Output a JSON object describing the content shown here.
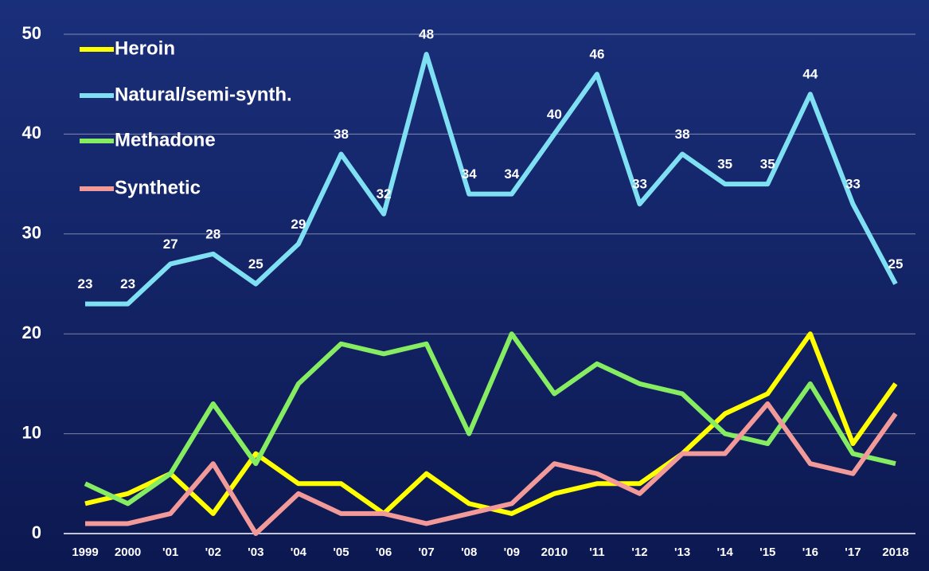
{
  "chart_data": {
    "type": "line",
    "categories": [
      "1999",
      "2000",
      "'01",
      "'02",
      "'03",
      "'04",
      "'05",
      "'06",
      "'07",
      "'08",
      "'09",
      "2010",
      "'11",
      "'12",
      "'13",
      "'14",
      "'15",
      "'16",
      "'17",
      "2018"
    ],
    "series": [
      {
        "name": "Heroin",
        "color": "#ffff00",
        "values": [
          3,
          4,
          6,
          2,
          8,
          5,
          5,
          2,
          6,
          3,
          2,
          4,
          5,
          5,
          8,
          12,
          14,
          20,
          9,
          15
        ]
      },
      {
        "name": "Natural/semi-synth.",
        "color": "#7ee0f2",
        "show_labels": true,
        "values": [
          23,
          23,
          27,
          28,
          25,
          29,
          38,
          32,
          48,
          34,
          34,
          40,
          46,
          33,
          38,
          35,
          35,
          44,
          33,
          25
        ]
      },
      {
        "name": "Methadone",
        "color": "#86ec62",
        "values": [
          5,
          3,
          6,
          13,
          7,
          15,
          19,
          18,
          19,
          10,
          20,
          14,
          17,
          15,
          14,
          10,
          9,
          15,
          8,
          7
        ]
      },
      {
        "name": "Synthetic",
        "color": "#f29a9a",
        "values": [
          1,
          1,
          2,
          7,
          0,
          4,
          2,
          2,
          1,
          2,
          3,
          7,
          6,
          4,
          8,
          8,
          13,
          7,
          6,
          12
        ]
      }
    ],
    "ylim": [
      0,
      50
    ],
    "yticks": [
      0,
      10,
      20,
      30,
      40,
      50
    ],
    "grid": true,
    "legend": "top-left"
  }
}
